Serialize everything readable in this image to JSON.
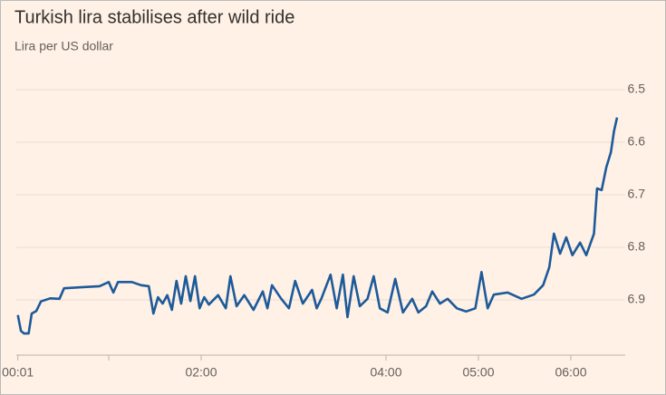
{
  "chart_data": {
    "type": "line",
    "title": "Turkish lira stabilises after wild ride",
    "subtitle": "Lira per US dollar",
    "x": [
      "00:01",
      "00:03",
      "00:05",
      "00:08",
      "00:10",
      "00:13",
      "00:16",
      "00:22",
      "00:28",
      "00:31",
      "00:42",
      "00:54",
      "01:00",
      "01:03",
      "01:06",
      "01:15",
      "01:21",
      "01:26",
      "01:29",
      "01:32",
      "01:35",
      "01:38",
      "01:41",
      "01:44",
      "01:47",
      "01:50",
      "01:53",
      "01:56",
      "01:59",
      "02:02",
      "02:05",
      "02:11",
      "02:16",
      "02:19",
      "02:23",
      "02:28",
      "02:34",
      "02:40",
      "02:43",
      "02:46",
      "02:52",
      "02:57",
      "03:01",
      "03:06",
      "03:12",
      "03:15",
      "03:18",
      "03:24",
      "03:28",
      "03:32",
      "03:35",
      "03:39",
      "03:43",
      "03:48",
      "03:52",
      "03:56",
      "04:01",
      "04:06",
      "04:11",
      "04:17",
      "04:21",
      "04:26",
      "04:30",
      "04:35",
      "04:40",
      "04:46",
      "04:52",
      "04:58",
      "05:02",
      "05:06",
      "05:10",
      "05:19",
      "05:28",
      "05:36",
      "05:42",
      "05:46",
      "05:49",
      "05:53",
      "05:57",
      "06:01",
      "06:06",
      "06:10",
      "06:15",
      "06:17",
      "06:20",
      "06:23",
      "06:26",
      "06:28",
      "06:30"
    ],
    "series": [
      {
        "name": "Lira per US dollar",
        "color": "#1d5a9a",
        "values": [
          6.929,
          6.959,
          6.964,
          6.964,
          6.926,
          6.921,
          6.903,
          6.897,
          6.898,
          6.878,
          6.876,
          6.874,
          6.866,
          6.886,
          6.866,
          6.866,
          6.872,
          6.874,
          6.926,
          6.895,
          6.907,
          6.891,
          6.919,
          6.864,
          6.907,
          6.855,
          6.902,
          6.855,
          6.916,
          6.895,
          6.909,
          6.891,
          6.916,
          6.855,
          6.912,
          6.891,
          6.919,
          6.884,
          6.916,
          6.872,
          6.898,
          6.916,
          6.864,
          6.907,
          6.881,
          6.916,
          6.898,
          6.852,
          6.916,
          6.852,
          6.933,
          6.855,
          6.912,
          6.898,
          6.855,
          6.916,
          6.924,
          6.86,
          6.924,
          6.898,
          6.924,
          6.912,
          6.884,
          6.907,
          6.898,
          6.916,
          6.922,
          6.916,
          6.847,
          6.916,
          6.89,
          6.886,
          6.898,
          6.89,
          6.872,
          6.838,
          6.774,
          6.812,
          6.781,
          6.815,
          6.791,
          6.815,
          6.774,
          6.688,
          6.691,
          6.648,
          6.619,
          6.579,
          6.553
        ]
      }
    ],
    "xlim": [
      "00:00",
      "06:48"
    ],
    "xticks": [
      "00:01",
      {
        "value": "01:00",
        "label": null
      },
      "02:00",
      "04:00",
      "05:00",
      "06:00"
    ],
    "ylim": [
      6.45,
      7.0
    ],
    "yticks": [
      6.5,
      6.6,
      6.7,
      6.8,
      6.9
    ],
    "y_inverted": true,
    "grid": true
  }
}
